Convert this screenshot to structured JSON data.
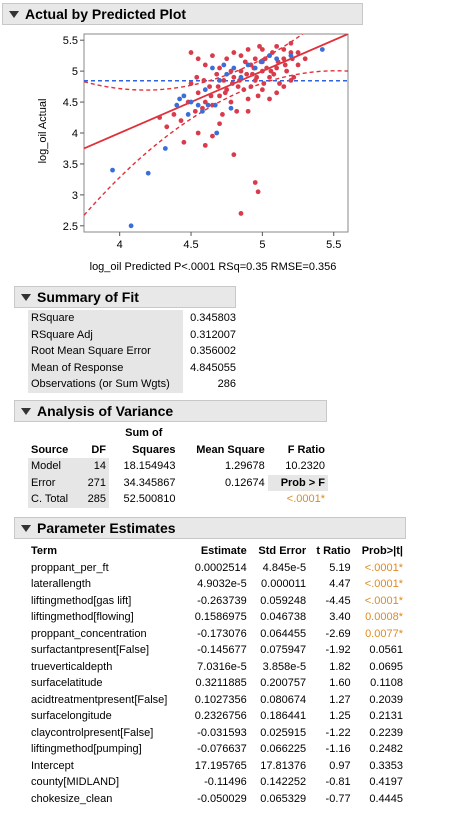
{
  "plot": {
    "header": "Actual by Predicted Plot",
    "ylabel": "log_oil Actual",
    "xlabel": "log_oil Predicted P<.0001 RSq=0.35 RMSE=0.356",
    "colors": {
      "red": "#d93b4c",
      "blue": "#3a6fd8",
      "line": "#e0303a",
      "mean": "#2f63e0"
    }
  },
  "chart_data": {
    "type": "scatter",
    "xlabel": "log_oil Predicted P<.0001 RSq=0.35 RMSE=0.356",
    "ylabel": "log_oil Actual",
    "xlim": [
      3.75,
      5.6
    ],
    "ylim": [
      2.4,
      5.6
    ],
    "xticks": [
      "4",
      "4.5",
      "5",
      "5.5"
    ],
    "yticks": [
      "2.5",
      "3",
      "3.5",
      "4",
      "4.5",
      "5",
      "5.5"
    ],
    "mean_line": 4.845055,
    "fit_line": [
      [
        3.75,
        3.75
      ],
      [
        5.6,
        5.6
      ]
    ],
    "series": [
      {
        "color": "red",
        "points": [
          [
            4.5,
            4.8
          ],
          [
            4.55,
            4.65
          ],
          [
            4.6,
            4.5
          ],
          [
            4.65,
            4.45
          ],
          [
            4.7,
            4.6
          ],
          [
            4.72,
            4.3
          ],
          [
            4.75,
            4.7
          ],
          [
            4.78,
            4.5
          ],
          [
            4.8,
            4.9
          ],
          [
            4.82,
            4.35
          ],
          [
            4.85,
            5.0
          ],
          [
            4.87,
            4.7
          ],
          [
            4.9,
            4.55
          ],
          [
            4.92,
            5.1
          ],
          [
            4.95,
            4.85
          ],
          [
            4.97,
            4.6
          ],
          [
            5.0,
            5.0
          ],
          [
            5.02,
            5.2
          ],
          [
            5.05,
            4.9
          ],
          [
            5.07,
            5.3
          ],
          [
            5.1,
            5.05
          ],
          [
            5.12,
            4.8
          ],
          [
            5.15,
            5.2
          ],
          [
            5.17,
            5.0
          ],
          [
            5.2,
            5.3
          ],
          [
            5.22,
            4.9
          ],
          [
            5.25,
            5.1
          ],
          [
            5.0,
            4.7
          ],
          [
            4.98,
            5.4
          ],
          [
            4.93,
            4.95
          ],
          [
            4.88,
            5.15
          ],
          [
            4.83,
            4.75
          ],
          [
            4.78,
            5.0
          ],
          [
            4.73,
            4.85
          ],
          [
            4.68,
            4.95
          ],
          [
            4.63,
            4.75
          ],
          [
            4.58,
            4.4
          ],
          [
            4.53,
            4.35
          ],
          [
            4.48,
            4.5
          ],
          [
            4.43,
            4.2
          ],
          [
            4.38,
            4.3
          ],
          [
            4.33,
            4.1
          ],
          [
            4.28,
            4.25
          ],
          [
            4.5,
            5.3
          ],
          [
            4.55,
            5.2
          ],
          [
            4.6,
            5.1
          ],
          [
            4.65,
            5.25
          ],
          [
            4.7,
            5.05
          ],
          [
            4.75,
            5.2
          ],
          [
            4.8,
            5.3
          ],
          [
            4.85,
            5.25
          ],
          [
            4.9,
            5.35
          ],
          [
            4.95,
            5.2
          ],
          [
            5.0,
            5.35
          ],
          [
            5.05,
            5.25
          ],
          [
            5.1,
            5.4
          ],
          [
            5.15,
            5.35
          ],
          [
            5.2,
            5.45
          ],
          [
            5.25,
            5.3
          ],
          [
            5.3,
            5.2
          ],
          [
            4.95,
            3.2
          ],
          [
            4.97,
            3.05
          ],
          [
            4.85,
            2.7
          ],
          [
            4.8,
            3.65
          ],
          [
            4.6,
            3.8
          ],
          [
            4.45,
            3.85
          ],
          [
            4.65,
            3.95
          ],
          [
            4.7,
            4.15
          ],
          [
            4.55,
            4.0
          ],
          [
            4.9,
            4.35
          ],
          [
            5.05,
            4.55
          ],
          [
            5.1,
            4.65
          ],
          [
            5.15,
            4.75
          ],
          [
            5.2,
            4.85
          ],
          [
            4.92,
            4.75
          ],
          [
            4.96,
            4.9
          ],
          [
            5.01,
            4.8
          ],
          [
            5.06,
            5.0
          ],
          [
            5.11,
            5.15
          ],
          [
            5.16,
            5.1
          ],
          [
            5.21,
            5.2
          ],
          [
            5.08,
            4.95
          ],
          [
            5.03,
            5.05
          ],
          [
            4.99,
            5.15
          ],
          [
            4.94,
            5.05
          ],
          [
            4.89,
            4.95
          ],
          [
            4.84,
            4.85
          ],
          [
            4.79,
            4.8
          ],
          [
            4.74,
            4.65
          ],
          [
            4.69,
            4.75
          ],
          [
            4.64,
            4.6
          ],
          [
            4.59,
            4.85
          ],
          [
            4.54,
            4.9
          ]
        ]
      },
      {
        "color": "blue",
        "points": [
          [
            3.95,
            3.4
          ],
          [
            4.08,
            2.5
          ],
          [
            4.2,
            3.35
          ],
          [
            4.32,
            3.75
          ],
          [
            4.4,
            4.45
          ],
          [
            4.45,
            4.6
          ],
          [
            4.5,
            4.5
          ],
          [
            4.55,
            4.45
          ],
          [
            4.6,
            4.7
          ],
          [
            4.62,
            4.45
          ],
          [
            4.67,
            4.45
          ],
          [
            4.7,
            4.85
          ],
          [
            4.75,
            4.95
          ],
          [
            4.8,
            5.05
          ],
          [
            4.85,
            4.9
          ],
          [
            4.9,
            5.1
          ],
          [
            4.95,
            5.05
          ],
          [
            5.0,
            5.15
          ],
          [
            5.05,
            5.25
          ],
          [
            5.1,
            5.2
          ],
          [
            5.2,
            5.25
          ],
          [
            5.42,
            5.35
          ],
          [
            4.42,
            4.55
          ],
          [
            4.48,
            4.3
          ],
          [
            4.58,
            4.35
          ],
          [
            4.68,
            4.0
          ],
          [
            4.65,
            5.05
          ],
          [
            4.73,
            5.1
          ],
          [
            4.78,
            4.4
          ]
        ]
      }
    ]
  },
  "summary": {
    "header": "Summary of Fit",
    "rows": [
      {
        "label": "RSquare",
        "value": "0.345803"
      },
      {
        "label": "RSquare Adj",
        "value": "0.312007"
      },
      {
        "label": "Root Mean Square Error",
        "value": "0.356002"
      },
      {
        "label": "Mean of Response",
        "value": "4.845055"
      },
      {
        "label": "Observations (or Sum Wgts)",
        "value": "286"
      }
    ]
  },
  "anova": {
    "header": "Analysis of Variance",
    "head1": {
      "sum_of": "Sum of"
    },
    "head2": {
      "source": "Source",
      "df": "DF",
      "squares": "Squares",
      "mean_square": "Mean Square",
      "f_ratio": "F Ratio"
    },
    "rows": [
      {
        "source": "Model",
        "df": "14",
        "ss": "18.154943",
        "ms": "1.29678",
        "f": "10.2320"
      },
      {
        "source": "Error",
        "df": "271",
        "ss": "34.345867",
        "ms": "0.12674",
        "f": "Prob > F"
      },
      {
        "source": "C. Total",
        "df": "285",
        "ss": "52.500810",
        "ms": "",
        "f": "<.0001*"
      }
    ]
  },
  "params": {
    "header": "Parameter Estimates",
    "cols": {
      "term": "Term",
      "estimate": "Estimate",
      "stderr": "Std Error",
      "t": "t Ratio",
      "p": "Prob>|t|"
    },
    "rows": [
      {
        "term": "proppant_per_ft",
        "est": "0.0002514",
        "se": "4.845e-5",
        "t": "5.19",
        "p": "<.0001*"
      },
      {
        "term": "laterallength",
        "est": "4.9032e-5",
        "se": "0.000011",
        "t": "4.47",
        "p": "<.0001*"
      },
      {
        "term": "liftingmethod[gas lift]",
        "est": "-0.263739",
        "se": "0.059248",
        "t": "-4.45",
        "p": "<.0001*"
      },
      {
        "term": "liftingmethod[flowing]",
        "est": "0.1586975",
        "se": "0.046738",
        "t": "3.40",
        "p": "0.0008*"
      },
      {
        "term": "proppant_concentration",
        "est": "-0.173076",
        "se": "0.064455",
        "t": "-2.69",
        "p": "0.0077*"
      },
      {
        "term": "surfactantpresent[False]",
        "est": "-0.145677",
        "se": "0.075947",
        "t": "-1.92",
        "p": "0.0561"
      },
      {
        "term": "trueverticaldepth",
        "est": "7.0316e-5",
        "se": "3.858e-5",
        "t": "1.82",
        "p": "0.0695"
      },
      {
        "term": "surfacelatitude",
        "est": "0.3211885",
        "se": "0.200757",
        "t": "1.60",
        "p": "0.1108"
      },
      {
        "term": "acidtreatmentpresent[False]",
        "est": "0.1027356",
        "se": "0.080674",
        "t": "1.27",
        "p": "0.2039"
      },
      {
        "term": "surfacelongitude",
        "est": "0.2326756",
        "se": "0.186441",
        "t": "1.25",
        "p": "0.2131"
      },
      {
        "term": "claycontrolpresent[False]",
        "est": "-0.031593",
        "se": "0.025915",
        "t": "-1.22",
        "p": "0.2239"
      },
      {
        "term": "liftingmethod[pumping]",
        "est": "-0.076637",
        "se": "0.066225",
        "t": "-1.16",
        "p": "0.2482"
      },
      {
        "term": "Intercept",
        "est": "17.195765",
        "se": "17.81376",
        "t": "0.97",
        "p": "0.3353"
      },
      {
        "term": "county[MIDLAND]",
        "est": "-0.11496",
        "se": "0.142252",
        "t": "-0.81",
        "p": "0.4197"
      },
      {
        "term": "chokesize_clean",
        "est": "-0.050029",
        "se": "0.065329",
        "t": "-0.77",
        "p": "0.4445"
      }
    ]
  }
}
